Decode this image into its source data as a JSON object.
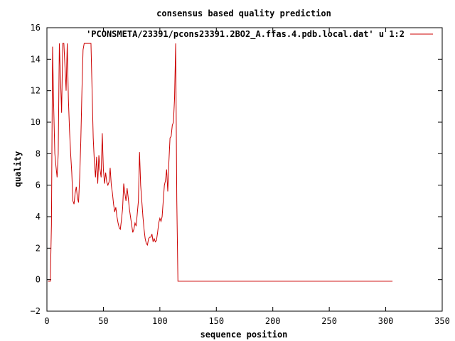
{
  "chart_data": {
    "type": "line",
    "title": "consensus based quality prediction",
    "xlabel": "sequence position",
    "ylabel": "quality",
    "xlim": [
      0,
      350
    ],
    "ylim": [
      -2,
      16
    ],
    "xticks": [
      0,
      50,
      100,
      150,
      200,
      250,
      300,
      350
    ],
    "yticks": [
      -2,
      0,
      2,
      4,
      6,
      8,
      10,
      12,
      14,
      16
    ],
    "grid": false,
    "legend_position": "top-right",
    "series": [
      {
        "name": "'PCONSMETA/23391/pcons23391.2BO2_A.ffas.4.pdb.local.dat' u 1:2",
        "color": "#cc0000",
        "x": [
          1,
          2,
          3,
          4,
          5,
          6,
          7,
          8,
          9,
          10,
          11,
          12,
          13,
          14,
          15,
          16,
          17,
          18,
          19,
          20,
          21,
          22,
          23,
          24,
          25,
          26,
          27,
          28,
          29,
          30,
          31,
          32,
          33,
          34,
          35,
          36,
          37,
          38,
          39,
          40,
          41,
          42,
          43,
          44,
          45,
          46,
          47,
          48,
          49,
          50,
          51,
          52,
          53,
          54,
          55,
          56,
          57,
          58,
          59,
          60,
          61,
          62,
          63,
          64,
          65,
          66,
          67,
          68,
          69,
          70,
          71,
          72,
          73,
          74,
          75,
          76,
          77,
          78,
          79,
          80,
          81,
          82,
          83,
          84,
          85,
          86,
          87,
          88,
          89,
          90,
          91,
          92,
          93,
          94,
          95,
          96,
          97,
          98,
          99,
          100,
          101,
          102,
          103,
          104,
          105,
          106,
          107,
          108,
          109,
          110,
          111,
          112,
          113,
          114,
          115,
          116,
          117,
          118,
          119,
          120,
          121,
          122,
          123,
          124,
          125,
          126,
          127,
          128,
          129,
          130,
          131,
          132,
          133,
          134,
          135,
          136,
          137,
          138,
          139,
          140,
          141,
          142,
          143,
          144,
          306
        ],
        "y": [
          -0.1,
          -0.1,
          -0.1,
          3.5,
          14.8,
          11.0,
          8.0,
          7.2,
          6.5,
          8.0,
          15.0,
          12.8,
          10.6,
          15.0,
          15.0,
          13.5,
          12.0,
          15.0,
          11.5,
          9.5,
          8.0,
          6.8,
          5.0,
          4.8,
          5.5,
          5.9,
          5.2,
          4.9,
          6.5,
          8.8,
          12.0,
          14.6,
          15.0,
          15.0,
          15.0,
          15.0,
          15.0,
          15.0,
          15.0,
          12.0,
          9.0,
          7.5,
          6.5,
          7.8,
          6.1,
          7.9,
          7.0,
          6.5,
          9.3,
          7.0,
          6.1,
          6.8,
          6.2,
          6.0,
          6.2,
          7.1,
          6.0,
          5.5,
          4.8,
          4.3,
          4.6,
          4.0,
          3.6,
          3.3,
          3.2,
          3.8,
          4.5,
          6.1,
          5.5,
          5.0,
          5.8,
          5.2,
          4.5,
          4.0,
          3.5,
          3.0,
          3.2,
          3.6,
          3.4,
          4.2,
          5.0,
          8.1,
          6.0,
          5.0,
          4.0,
          3.2,
          2.6,
          2.3,
          2.2,
          2.6,
          2.7,
          2.7,
          2.9,
          2.4,
          2.6,
          2.4,
          2.5,
          3.0,
          3.6,
          3.9,
          3.7,
          4.0,
          5.0,
          6.0,
          6.3,
          7.0,
          5.6,
          7.5,
          9.0,
          9.1,
          9.8,
          10.0,
          11.5,
          15.0,
          5.0,
          -0.1,
          -0.1,
          -0.1,
          -0.1,
          -0.1,
          -0.1,
          -0.1,
          -0.1,
          -0.1,
          -0.1,
          -0.1,
          -0.1,
          -0.1,
          -0.1,
          -0.1,
          -0.1,
          -0.1,
          -0.1,
          -0.1,
          -0.1,
          -0.1,
          -0.1,
          -0.1,
          -0.1,
          -0.1,
          -0.1,
          -0.1,
          -0.1,
          -0.1,
          -0.1
        ]
      }
    ]
  }
}
